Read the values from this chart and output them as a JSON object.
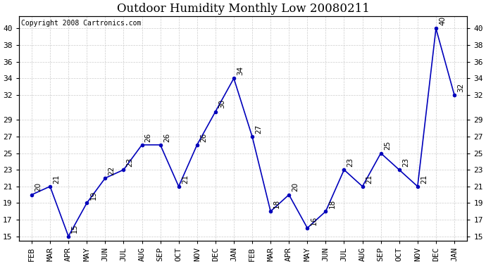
{
  "title": "Outdoor Humidity Monthly Low 20080211",
  "copyright": "Copyright 2008 Cartronics.com",
  "months": [
    "FEB",
    "MAR",
    "APR",
    "MAY",
    "JUN",
    "JUL",
    "AUG",
    "SEP",
    "OCT",
    "NOV",
    "DEC",
    "JAN",
    "FEB",
    "MAR",
    "APR",
    "MAY",
    "JUN",
    "JUL",
    "AUG",
    "SEP",
    "OCT",
    "NOV",
    "DEC",
    "JAN"
  ],
  "values": [
    20,
    21,
    15,
    19,
    22,
    23,
    26,
    26,
    21,
    26,
    30,
    34,
    27,
    18,
    20,
    16,
    18,
    23,
    21,
    25,
    23,
    21,
    40,
    32
  ],
  "line_color": "#0000bb",
  "bg_color": "#ffffff",
  "grid_color": "#cccccc",
  "ylim_min": 14.5,
  "ylim_max": 41.5,
  "yticks": [
    15,
    17,
    19,
    21,
    23,
    25,
    27,
    29,
    32,
    34,
    36,
    38,
    40
  ],
  "title_fontsize": 12,
  "tick_fontsize": 8,
  "copyright_fontsize": 7,
  "annot_fontsize": 7.5
}
